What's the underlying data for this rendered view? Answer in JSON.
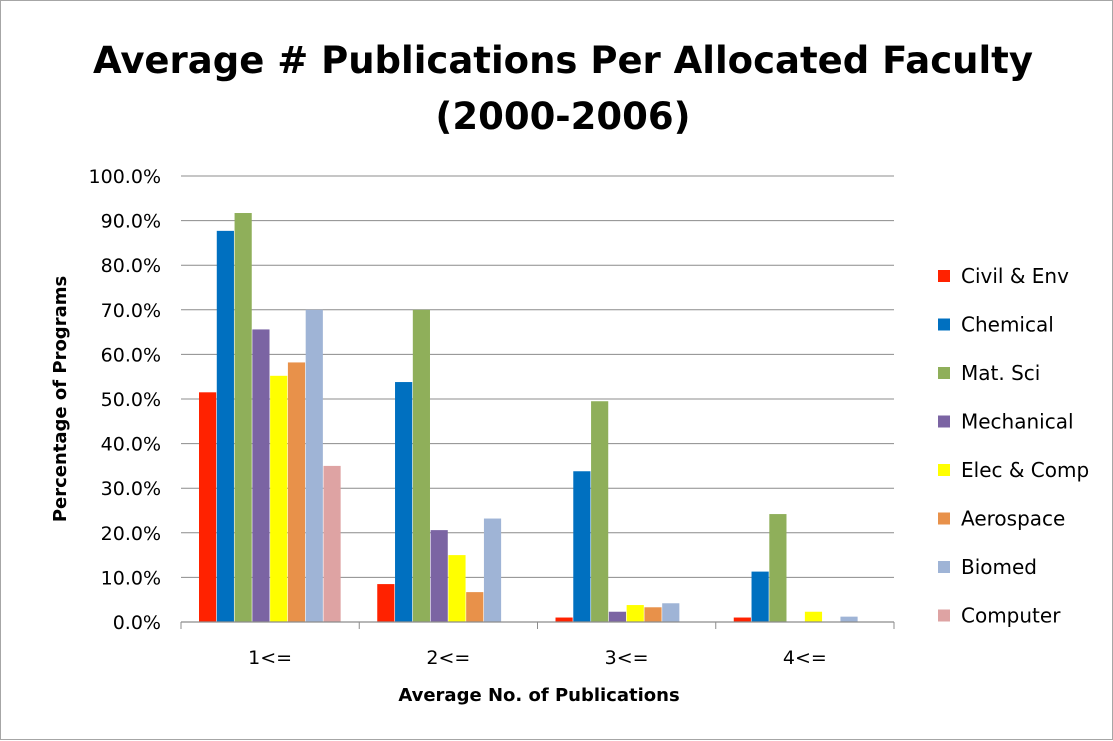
{
  "chart_data": {
    "type": "bar",
    "title_lines": [
      "Average # Publications Per Allocated Faculty",
      "(2000-2006)"
    ],
    "xlabel": "Average No. of Publications",
    "ylabel": "Percentage of Programs",
    "categories": [
      "1<=",
      "2<=",
      "3<=",
      "4<="
    ],
    "ylim": [
      0,
      100
    ],
    "ytick_values": [
      0,
      10,
      20,
      30,
      40,
      50,
      60,
      70,
      80,
      90,
      100
    ],
    "ytick_labels": [
      "0.0%",
      "10.0%",
      "20.0%",
      "30.0%",
      "40.0%",
      "50.0%",
      "60.0%",
      "70.0%",
      "80.0%",
      "90.0%",
      "100.0%"
    ],
    "grid": true,
    "legend_position": "right",
    "series": [
      {
        "name": "Civil & Env",
        "color": "#ff2200",
        "values": [
          51.5,
          8.5,
          1.0,
          1.0
        ]
      },
      {
        "name": "Chemical",
        "color": "#0070c0",
        "values": [
          87.7,
          53.8,
          33.8,
          11.3
        ]
      },
      {
        "name": "Mat. Sci",
        "color": "#8faf5a",
        "values": [
          91.7,
          70.0,
          49.5,
          24.2
        ]
      },
      {
        "name": "Mechanical",
        "color": "#7b64a3",
        "values": [
          65.6,
          20.6,
          2.3,
          0
        ]
      },
      {
        "name": "Elec & Comp",
        "color": "#ffff00",
        "values": [
          55.2,
          15.0,
          3.8,
          2.3
        ]
      },
      {
        "name": "Aerospace",
        "color": "#e8914a",
        "values": [
          58.2,
          6.7,
          3.3,
          0
        ]
      },
      {
        "name": "Biomed",
        "color": "#9fb4d6",
        "values": [
          70.0,
          23.2,
          4.2,
          1.2
        ]
      },
      {
        "name": "Computer",
        "color": "#dea3a3",
        "values": [
          35.0,
          0,
          0,
          0
        ]
      }
    ]
  }
}
